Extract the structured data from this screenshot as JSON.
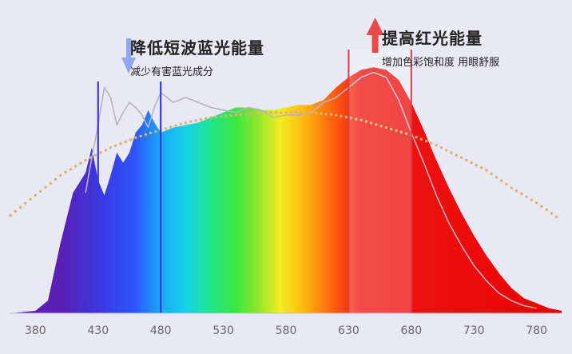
{
  "annotations": {
    "blue": {
      "title": "降低短波蓝光能量",
      "subtitle": "减少有害蓝光成分",
      "arrow": "down-arrow-icon",
      "color": "#8fa6f0"
    },
    "red": {
      "title": "提高红光能量",
      "subtitle": "增加色彩饱和度 用眼舒服",
      "arrow": "up-arrow-icon",
      "color": "#e84a4a"
    }
  },
  "chart_data": {
    "type": "area",
    "title": "",
    "xlabel": "",
    "ylabel": "",
    "xlim": [
      360,
      800
    ],
    "ylim": [
      0,
      1
    ],
    "x_ticks": [
      380,
      430,
      480,
      530,
      580,
      630,
      680,
      730,
      780
    ],
    "series": [
      {
        "role": "spectrum-fill",
        "x": [
          360,
          380,
          390,
          400,
          410,
          420,
          425,
          430,
          435,
          440,
          445,
          450,
          455,
          460,
          465,
          470,
          475,
          480,
          490,
          500,
          510,
          520,
          530,
          540,
          550,
          560,
          570,
          580,
          590,
          600,
          610,
          620,
          630,
          640,
          650,
          660,
          670,
          680,
          690,
          700,
          710,
          720,
          730,
          740,
          750,
          760,
          770,
          780,
          790,
          800
        ],
        "values": [
          0.0,
          0.01,
          0.05,
          0.28,
          0.48,
          0.56,
          0.66,
          0.53,
          0.47,
          0.55,
          0.64,
          0.6,
          0.64,
          0.72,
          0.75,
          0.81,
          0.76,
          0.72,
          0.74,
          0.75,
          0.76,
          0.78,
          0.8,
          0.82,
          0.82,
          0.81,
          0.81,
          0.82,
          0.83,
          0.83,
          0.85,
          0.9,
          0.94,
          0.97,
          0.98,
          0.97,
          0.93,
          0.84,
          0.73,
          0.61,
          0.5,
          0.4,
          0.31,
          0.23,
          0.16,
          0.1,
          0.06,
          0.04,
          0.02,
          0.01
        ]
      },
      {
        "role": "reference-gray-line",
        "x": [
          420,
          425,
          430,
          435,
          440,
          445,
          450,
          455,
          460,
          465,
          470,
          475,
          480,
          490,
          500,
          510,
          520,
          530,
          540,
          550,
          560,
          570,
          580,
          590,
          600,
          610,
          620,
          630,
          640,
          650,
          660,
          670,
          680,
          690,
          700,
          710,
          720,
          730,
          740,
          750,
          760,
          770,
          780
        ],
        "values": [
          0.48,
          0.62,
          0.75,
          0.9,
          0.86,
          0.75,
          0.8,
          0.84,
          0.82,
          0.79,
          0.74,
          0.82,
          0.88,
          0.84,
          0.86,
          0.84,
          0.82,
          0.81,
          0.8,
          0.82,
          0.81,
          0.78,
          0.79,
          0.79,
          0.8,
          0.84,
          0.86,
          0.9,
          0.94,
          0.96,
          0.94,
          0.85,
          0.72,
          0.6,
          0.47,
          0.36,
          0.27,
          0.19,
          0.13,
          0.08,
          0.05,
          0.03,
          0.02
        ]
      },
      {
        "role": "dotted-reference-curve",
        "x": [
          360,
          380,
          400,
          420,
          440,
          460,
          480,
          500,
          520,
          540,
          560,
          580,
          600,
          620,
          640,
          660,
          680,
          700,
          720,
          740,
          760,
          780,
          800
        ],
        "values": [
          0.39,
          0.47,
          0.55,
          0.61,
          0.66,
          0.7,
          0.73,
          0.76,
          0.78,
          0.79,
          0.8,
          0.8,
          0.8,
          0.79,
          0.77,
          0.74,
          0.71,
          0.67,
          0.62,
          0.57,
          0.5,
          0.44,
          0.37
        ]
      }
    ],
    "markers": {
      "blue_band": {
        "x": [
          430,
          480
        ],
        "color": "#3b39d8"
      },
      "red_band": {
        "x": [
          630,
          680
        ],
        "color": "#e03a4a"
      }
    }
  }
}
